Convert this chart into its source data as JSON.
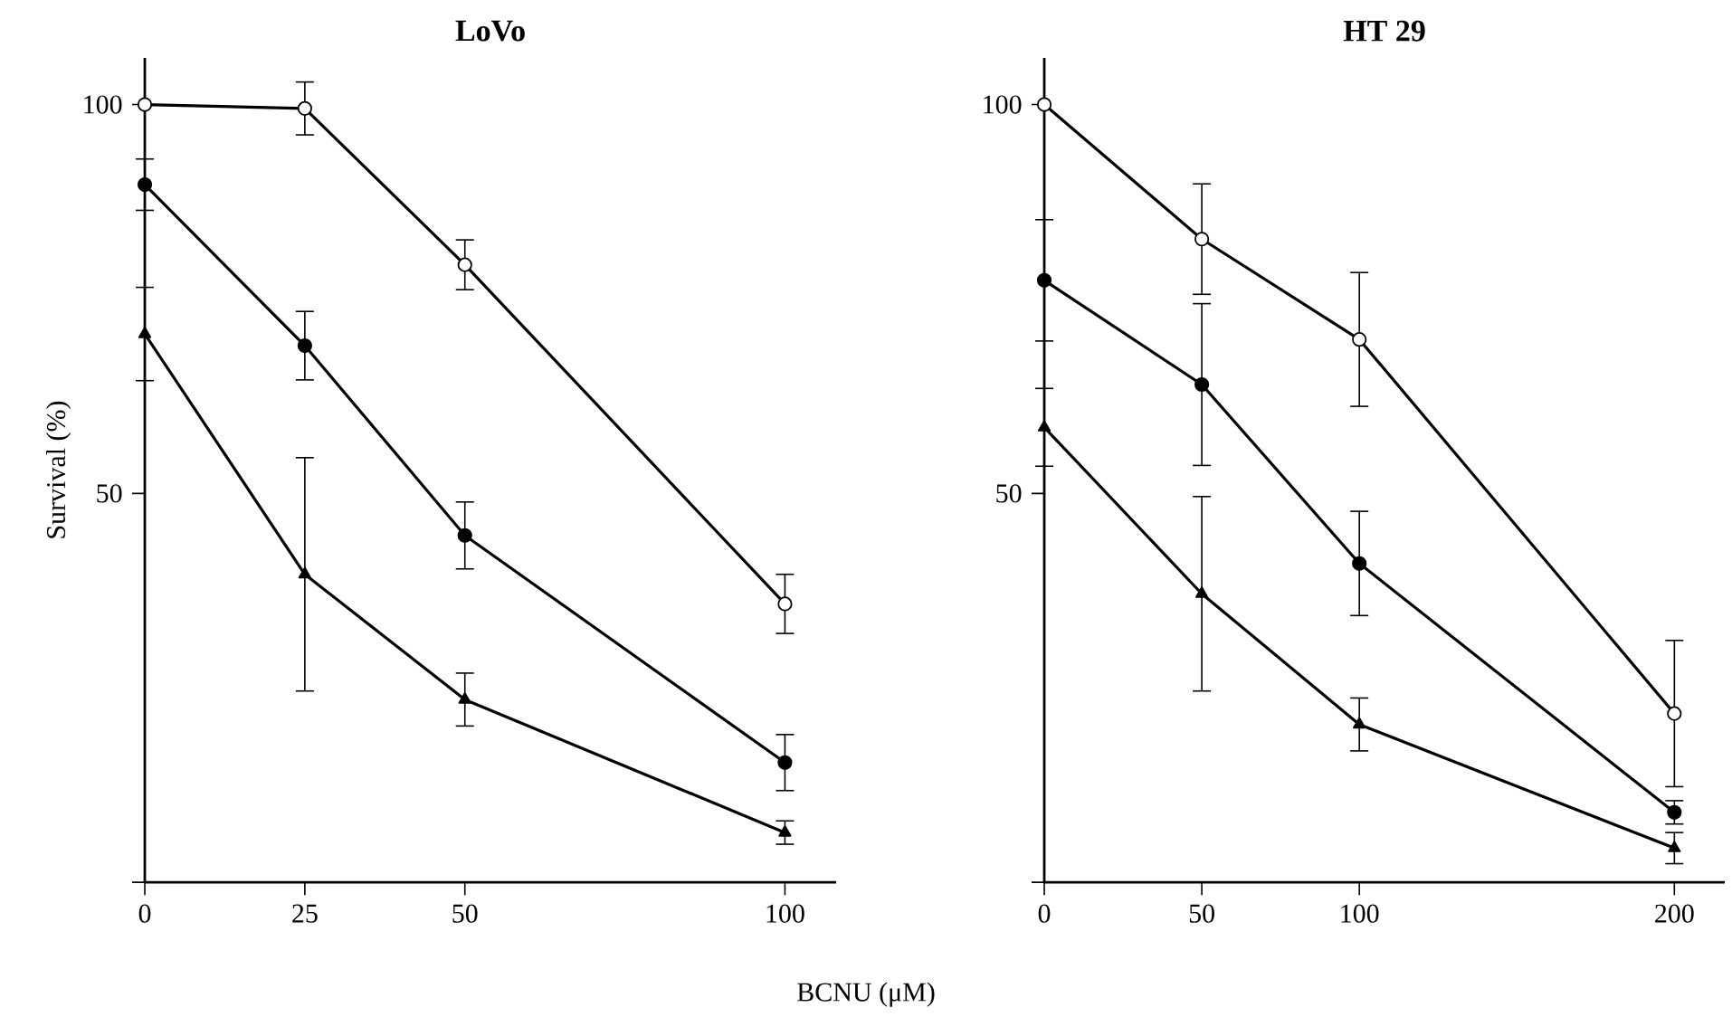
{
  "chart_data": [
    {
      "type": "line",
      "title": "LoVo",
      "ylabel": "Survival (%)",
      "xlabel": "BCNU (μM)",
      "xlim": [
        0,
        108
      ],
      "ylim": [
        0,
        106
      ],
      "xticks": [
        0,
        25,
        50,
        100
      ],
      "yticks": [
        {
          "value": 0,
          "label": null
        },
        50,
        100
      ],
      "x": [
        0,
        25,
        50,
        100
      ],
      "series": [
        {
          "color": "#000000",
          "marker": "circle",
          "colors": [
            "#ffffff",
            "#ffffff",
            "#ffffff",
            "#ffffff"
          ],
          "values": [
            100,
            99.5,
            79.4,
            35.8
          ],
          "errors": [
            null,
            3.4,
            3.2,
            3.8
          ]
        },
        {
          "color": "#000000",
          "marker": "circle",
          "values": [
            89.7,
            69,
            44.6,
            15.4
          ],
          "errors": [
            3.3,
            4.4,
            4.3,
            3.6
          ]
        },
        {
          "color": "#000000",
          "marker": "triangle",
          "values": [
            70.5,
            39.6,
            23.5,
            6.4
          ],
          "errors": [
            6,
            15,
            3.4,
            1.5
          ]
        }
      ],
      "grid": false,
      "line_style": "solid"
    },
    {
      "type": "line",
      "title": "HT 29",
      "xlim": [
        0,
        216
      ],
      "ylim": [
        0,
        106
      ],
      "xticks": [
        0,
        50,
        100,
        200
      ],
      "yticks": [
        {
          "value": 0,
          "label": null
        },
        50,
        100
      ],
      "x": [
        0,
        50,
        100,
        200
      ],
      "series": [
        {
          "color": "#000000",
          "marker": "circle",
          "colors": [
            "#ffffff",
            "#ffffff",
            "#ffffff",
            "#ffffff"
          ],
          "values": [
            100,
            82.7,
            69.8,
            21.7
          ],
          "errors": [
            null,
            7.1,
            8.6,
            9.4
          ]
        },
        {
          "color": "#000000",
          "marker": "circle",
          "values": [
            77.4,
            64,
            41,
            9
          ],
          "errors": [
            7.8,
            10.4,
            6.7,
            1.5
          ]
        },
        {
          "color": "#000000",
          "marker": "triangle",
          "values": [
            58.5,
            37.1,
            20.3,
            4.4
          ],
          "errors": [
            5,
            12.5,
            3.4,
            2
          ]
        }
      ],
      "grid": false,
      "line_style": "solid"
    }
  ]
}
